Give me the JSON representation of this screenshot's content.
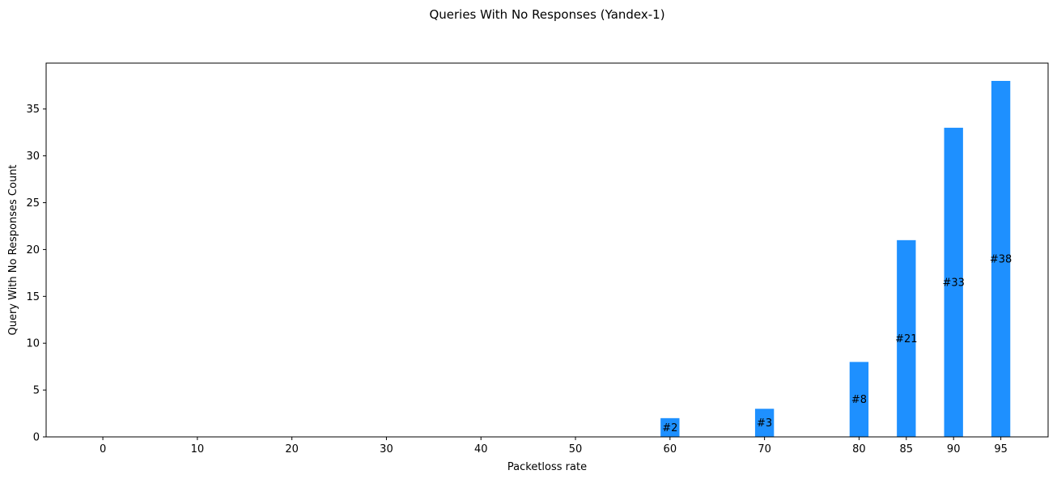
{
  "chart_data": {
    "type": "bar",
    "title": "Queries With No Responses (Yandex-1)",
    "xlabel": "Packetloss rate",
    "ylabel": "Query With No Responses Count",
    "x": [
      0,
      10,
      20,
      30,
      40,
      50,
      60,
      70,
      80,
      85,
      90,
      95
    ],
    "values": [
      0,
      0,
      0,
      0,
      0,
      0,
      2,
      3,
      8,
      21,
      33,
      38
    ],
    "data_labels": [
      "",
      "",
      "",
      "",
      "",
      "",
      "#2",
      "#3",
      "#8",
      "#21",
      "#33",
      "#38"
    ],
    "xticks": [
      "0",
      "10",
      "20",
      "30",
      "40",
      "50",
      "60",
      "70",
      "80",
      "85",
      "90",
      "95"
    ],
    "yticks": [
      0,
      5,
      10,
      15,
      20,
      25,
      30,
      35
    ],
    "xlim": [
      -6,
      100
    ],
    "ylim": [
      0,
      39.9
    ],
    "bar_width_units": 2,
    "bar_color": "#1e90ff",
    "grid": false,
    "legend": "none"
  }
}
